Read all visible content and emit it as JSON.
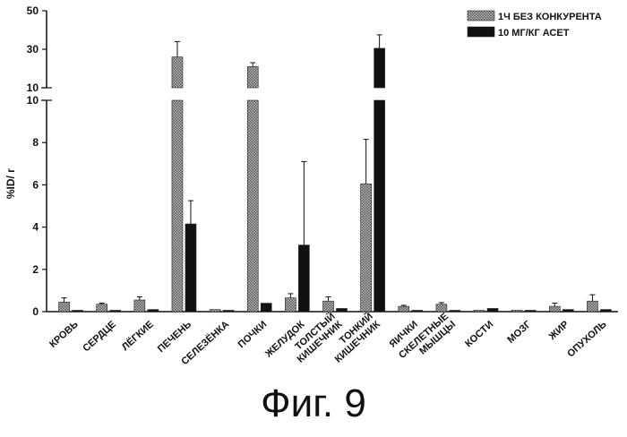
{
  "caption": "Фиг. 9",
  "chart_data": {
    "type": "bar",
    "ylabel": "%ID/ г",
    "ylim_lower": [
      0,
      10
    ],
    "ylim_upper": [
      10,
      50
    ],
    "yticks_lower": [
      0,
      2,
      4,
      6,
      8,
      10
    ],
    "yticks_upper": [
      10,
      30,
      50
    ],
    "legend_position": "top-right",
    "categories": [
      [
        "КРОВЬ"
      ],
      [
        "СЕРДЦЕ"
      ],
      [
        "ЛЁГКИЕ"
      ],
      [
        "ПЕЧЕНЬ"
      ],
      [
        "СЕЛЕЗЁНКА"
      ],
      [
        "ПОЧКИ"
      ],
      [
        "ЖЕЛУДОК"
      ],
      [
        "ТОЛСТЫЙ",
        "КИШЕЧНИК"
      ],
      [
        "ТОНКИЙ",
        "КИШЕЧНИК"
      ],
      [
        "ЯИЧКИ"
      ],
      [
        "СКЕЛЕТНЫЕ",
        "МЫШЦЫ"
      ],
      [
        "КОСТИ"
      ],
      [
        "МОЗГ"
      ],
      [
        "ЖИР"
      ],
      [
        "ОПУХОЛЬ"
      ]
    ],
    "series": [
      {
        "name": "1Ч БЕЗ КОНКУРЕНТА",
        "color": "#8a8a8a",
        "pattern": "hatched",
        "values": [
          0.45,
          0.35,
          0.55,
          26,
          0.1,
          21,
          0.65,
          0.5,
          6.05,
          0.25,
          0.35,
          0.05,
          0.05,
          0.25,
          0.5
        ],
        "errors": [
          0.2,
          0.05,
          0.15,
          8,
          0.02,
          2,
          0.2,
          0.2,
          2.1,
          0.05,
          0.08,
          0.02,
          0.02,
          0.15,
          0.3
        ]
      },
      {
        "name": "10 МГ/КГ АСЕТ",
        "color": "#111111",
        "pattern": "solid",
        "values": [
          0.05,
          0.05,
          0.1,
          4.15,
          0.05,
          0.4,
          3.15,
          0.15,
          30.5,
          0.05,
          0.05,
          0.15,
          0.05,
          0.1,
          0.1
        ],
        "errors": [
          0.01,
          0.01,
          0.02,
          1.1,
          0.01,
          0.03,
          3.95,
          0.03,
          7,
          0.01,
          0.01,
          0.02,
          0.01,
          0.02,
          0.02
        ]
      }
    ]
  }
}
